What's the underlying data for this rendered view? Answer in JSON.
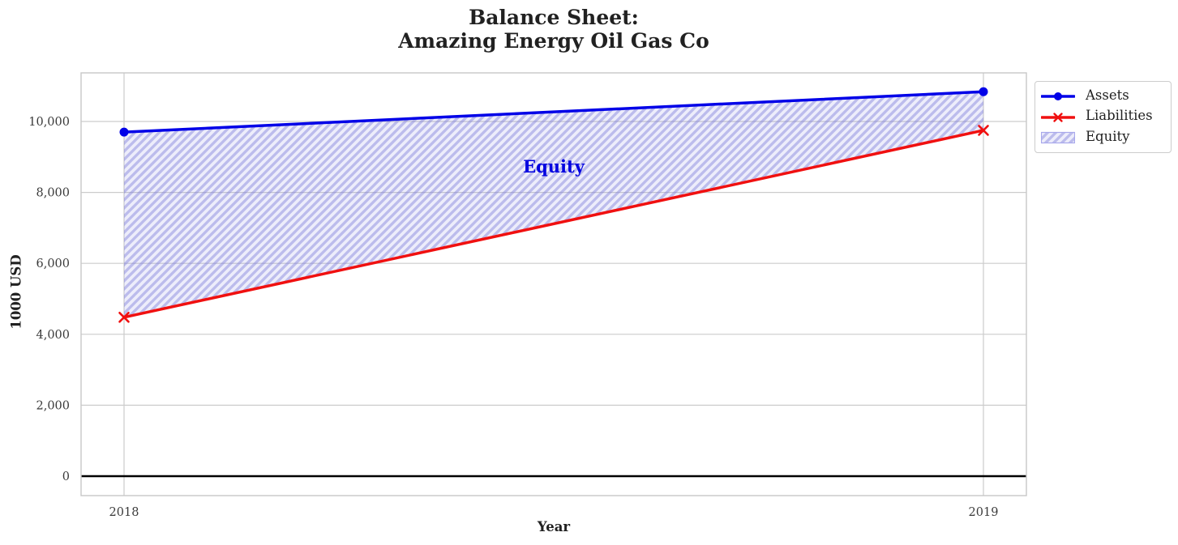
{
  "chart_data": {
    "type": "line",
    "title": "Balance Sheet:\nAmazing Energy Oil Gas Co",
    "xlabel": "Year",
    "ylabel": "1000 USD",
    "x": [
      "2018",
      "2019"
    ],
    "series": [
      {
        "name": "Assets",
        "marker": "circle",
        "color": "#0000e8",
        "values": [
          9700,
          10840
        ]
      },
      {
        "name": "Liabilities",
        "marker": "x",
        "color": "#f01010",
        "values": [
          4480,
          9750
        ]
      }
    ],
    "area": {
      "name": "Equity",
      "between": [
        "Assets",
        "Liabilities"
      ],
      "annotation": "Equity",
      "annotation_color": "#0000e0",
      "fill_color": "#9090ea",
      "hatch": "/",
      "values": [
        5220,
        1090
      ]
    },
    "yticks": {
      "values": [
        0,
        2000,
        4000,
        6000,
        8000,
        10000
      ],
      "labels": [
        "0",
        "2,000",
        "4,000",
        "6,000",
        "8,000",
        "10,000"
      ]
    },
    "xticks": [
      "2018",
      "2019"
    ],
    "ylim": [
      -550,
      11370
    ],
    "grid": true,
    "grid_color": "#cccccc",
    "zero_line": true,
    "zero_line_color": "#000000",
    "legend_position": "outside upper right",
    "legend_items": [
      "Assets",
      "Liabilities",
      "Equity"
    ]
  }
}
